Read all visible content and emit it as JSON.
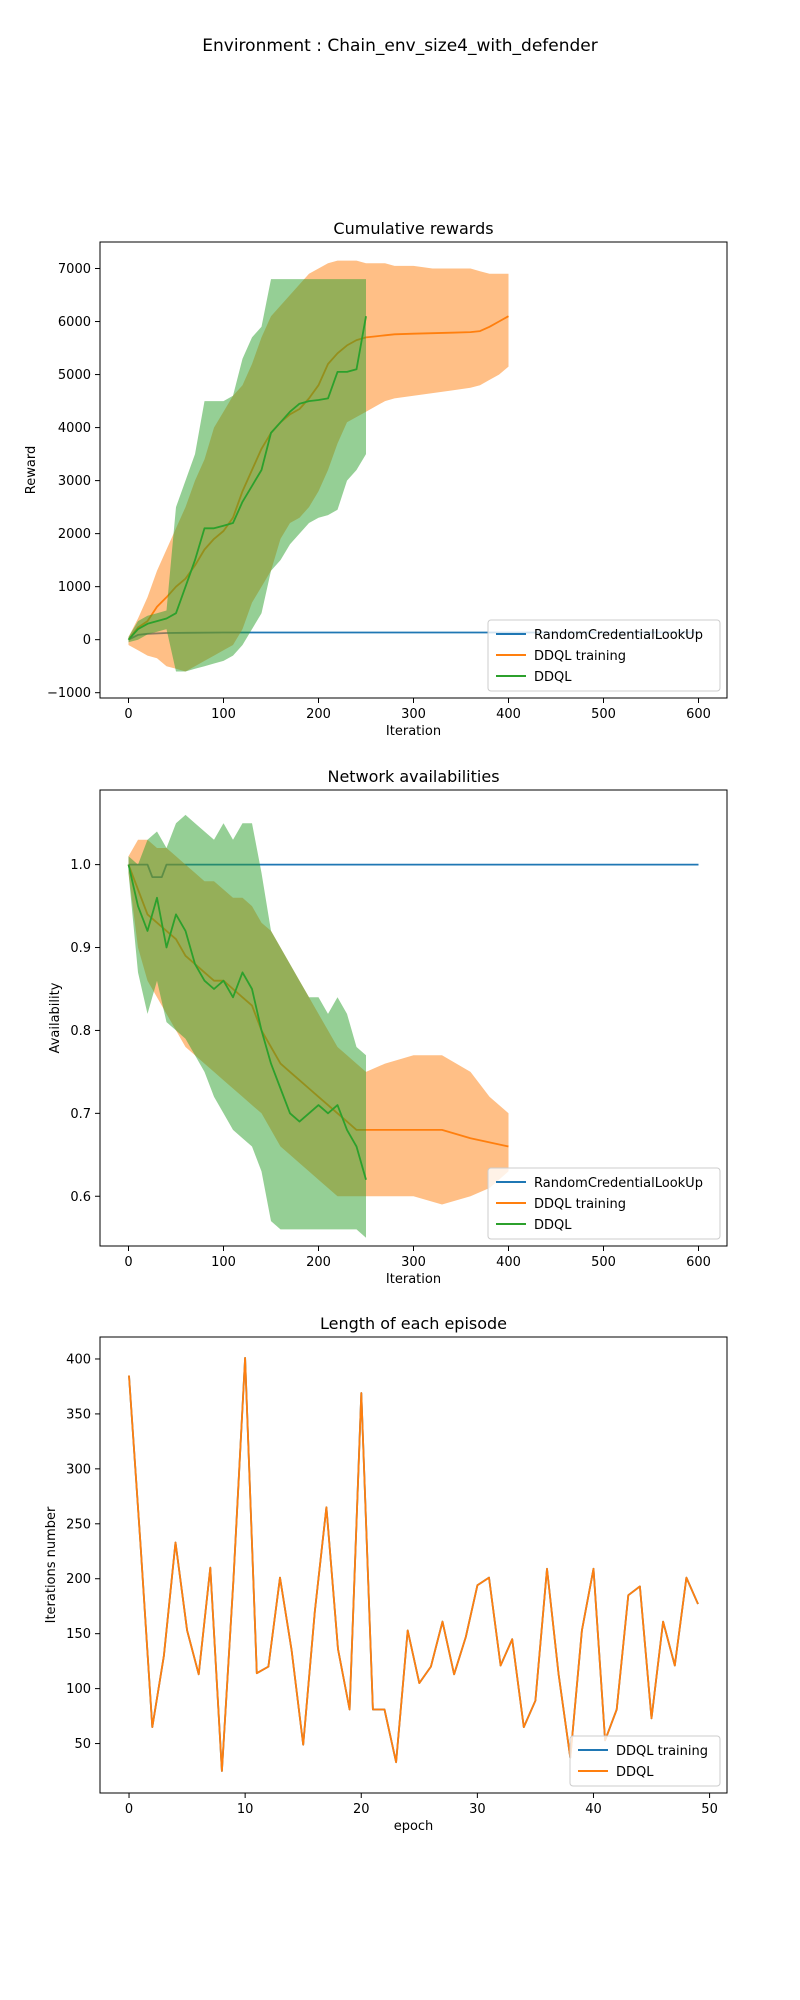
{
  "figure": {
    "suptitle": "Environment : Chain_env_size4_with_defender"
  },
  "chart_data": [
    {
      "type": "line",
      "title": "Cumulative rewards",
      "xlabel": "Iteration",
      "ylabel": "Reward",
      "xlim": [
        -30,
        630
      ],
      "ylim": [
        -1100,
        7500
      ],
      "xticks": [
        0,
        100,
        200,
        300,
        400,
        500,
        600
      ],
      "yticks": [
        -1000,
        0,
        1000,
        2000,
        3000,
        4000,
        5000,
        6000,
        7000
      ],
      "legend_position": "lower-right",
      "legend": [
        "RandomCredentialLookUp",
        "DDQL training",
        "DDQL"
      ],
      "series": [
        {
          "name": "RandomCredentialLookUp",
          "color": "#1f77b4",
          "x": [
            0,
            10,
            20,
            40,
            60,
            100,
            200,
            300,
            400,
            500,
            600
          ],
          "y": [
            0,
            90,
            110,
            125,
            130,
            135,
            135,
            135,
            135,
            135,
            135
          ]
        },
        {
          "name": "DDQL training",
          "color": "#ff7f0e",
          "x": [
            0,
            10,
            20,
            30,
            40,
            50,
            60,
            70,
            80,
            90,
            100,
            110,
            120,
            130,
            140,
            150,
            160,
            170,
            180,
            190,
            200,
            210,
            220,
            230,
            240,
            250,
            260,
            270,
            280,
            300,
            320,
            340,
            360,
            370,
            380,
            390,
            400
          ],
          "y": [
            0,
            230,
            350,
            620,
            800,
            1000,
            1150,
            1400,
            1700,
            1900,
            2050,
            2300,
            2800,
            3200,
            3600,
            3900,
            4100,
            4250,
            4350,
            4550,
            4800,
            5200,
            5400,
            5550,
            5650,
            5700,
            5720,
            5740,
            5760,
            5770,
            5780,
            5790,
            5800,
            5820,
            5900,
            6000,
            6100
          ],
          "band_low": [
            -100,
            -200,
            -300,
            -350,
            -500,
            -550,
            -600,
            -500,
            -400,
            -300,
            -200,
            -100,
            200,
            700,
            1000,
            1300,
            1900,
            2200,
            2300,
            2500,
            2800,
            3200,
            3700,
            4100,
            4200,
            4300,
            4400,
            4500,
            4550,
            4600,
            4650,
            4700,
            4750,
            4800,
            4900,
            5000,
            5150
          ],
          "band_high": [
            50,
            400,
            800,
            1300,
            1700,
            2100,
            2500,
            3000,
            3400,
            4000,
            4300,
            4600,
            4800,
            5200,
            5700,
            6100,
            6300,
            6500,
            6700,
            6900,
            7000,
            7100,
            7150,
            7150,
            7150,
            7100,
            7100,
            7100,
            7050,
            7050,
            7000,
            7000,
            7000,
            6950,
            6900,
            6900,
            6900
          ]
        },
        {
          "name": "DDQL",
          "color": "#2ca02c",
          "x": [
            0,
            10,
            20,
            30,
            40,
            50,
            60,
            70,
            80,
            90,
            100,
            110,
            120,
            130,
            140,
            150,
            160,
            170,
            180,
            190,
            200,
            210,
            220,
            230,
            240,
            250
          ],
          "y": [
            0,
            200,
            300,
            350,
            400,
            500,
            1000,
            1500,
            2100,
            2100,
            2150,
            2200,
            2600,
            2900,
            3200,
            3900,
            4100,
            4300,
            4450,
            4500,
            4520,
            4550,
            5050,
            5050,
            5100,
            6100
          ],
          "band_low": [
            -50,
            0,
            100,
            150,
            200,
            -600,
            -600,
            -550,
            -500,
            -450,
            -400,
            -300,
            -100,
            200,
            500,
            1300,
            1500,
            1800,
            2000,
            2200,
            2300,
            2350,
            2450,
            3000,
            3200,
            3500
          ],
          "band_high": [
            50,
            350,
            450,
            500,
            550,
            2500,
            3000,
            3500,
            4500,
            4500,
            4500,
            4600,
            5300,
            5700,
            5900,
            6800,
            6800,
            6800,
            6800,
            6800,
            6800,
            6800,
            6800,
            6800,
            6800,
            6800
          ]
        }
      ]
    },
    {
      "type": "line",
      "title": "Network availabilities",
      "xlabel": "Iteration",
      "ylabel": "Availability",
      "xlim": [
        -30,
        630
      ],
      "ylim": [
        0.54,
        1.09
      ],
      "xticks": [
        0,
        100,
        200,
        300,
        400,
        500,
        600
      ],
      "yticks": [
        0.6,
        0.7,
        0.8,
        0.9,
        1.0
      ],
      "yticklabels": [
        "0.6",
        "0.7",
        "0.8",
        "0.9",
        "1.0"
      ],
      "legend_position": "lower-right",
      "legend": [
        "RandomCredentialLookUp",
        "DDQL training",
        "DDQL"
      ],
      "series": [
        {
          "name": "RandomCredentialLookUp",
          "color": "#1f77b4",
          "x": [
            0,
            20,
            25,
            35,
            40,
            600
          ],
          "y": [
            1.0,
            1.0,
            0.985,
            0.985,
            1.0,
            1.0
          ]
        },
        {
          "name": "DDQL training",
          "color": "#ff7f0e",
          "x": [
            0,
            10,
            20,
            30,
            40,
            50,
            60,
            70,
            80,
            90,
            100,
            110,
            120,
            130,
            140,
            150,
            160,
            170,
            180,
            190,
            200,
            210,
            220,
            230,
            240,
            250,
            270,
            300,
            330,
            360,
            380,
            400
          ],
          "y": [
            1.0,
            0.97,
            0.94,
            0.93,
            0.92,
            0.91,
            0.89,
            0.88,
            0.87,
            0.86,
            0.86,
            0.85,
            0.84,
            0.83,
            0.8,
            0.78,
            0.76,
            0.75,
            0.74,
            0.73,
            0.72,
            0.71,
            0.7,
            0.69,
            0.68,
            0.68,
            0.68,
            0.68,
            0.68,
            0.67,
            0.665,
            0.66
          ],
          "band_low": [
            0.99,
            0.9,
            0.86,
            0.84,
            0.82,
            0.8,
            0.78,
            0.77,
            0.76,
            0.75,
            0.74,
            0.73,
            0.72,
            0.71,
            0.7,
            0.68,
            0.66,
            0.65,
            0.64,
            0.63,
            0.62,
            0.61,
            0.6,
            0.6,
            0.6,
            0.6,
            0.6,
            0.6,
            0.59,
            0.6,
            0.61,
            0.63
          ],
          "band_high": [
            1.01,
            1.03,
            1.03,
            1.02,
            1.02,
            1.01,
            1.0,
            0.99,
            0.98,
            0.98,
            0.97,
            0.96,
            0.96,
            0.95,
            0.93,
            0.92,
            0.9,
            0.88,
            0.86,
            0.84,
            0.82,
            0.8,
            0.78,
            0.77,
            0.76,
            0.75,
            0.76,
            0.77,
            0.77,
            0.75,
            0.72,
            0.7
          ]
        },
        {
          "name": "DDQL",
          "color": "#2ca02c",
          "x": [
            0,
            10,
            20,
            30,
            40,
            50,
            60,
            70,
            80,
            90,
            100,
            110,
            120,
            130,
            140,
            150,
            160,
            170,
            180,
            190,
            200,
            210,
            220,
            230,
            240,
            250
          ],
          "y": [
            1.0,
            0.95,
            0.92,
            0.96,
            0.9,
            0.94,
            0.92,
            0.88,
            0.86,
            0.85,
            0.86,
            0.84,
            0.87,
            0.85,
            0.8,
            0.76,
            0.73,
            0.7,
            0.69,
            0.7,
            0.71,
            0.7,
            0.71,
            0.68,
            0.66,
            0.62
          ],
          "band_low": [
            0.99,
            0.87,
            0.82,
            0.86,
            0.81,
            0.8,
            0.79,
            0.77,
            0.75,
            0.72,
            0.7,
            0.68,
            0.67,
            0.66,
            0.63,
            0.57,
            0.56,
            0.56,
            0.56,
            0.56,
            0.56,
            0.56,
            0.56,
            0.56,
            0.56,
            0.55
          ],
          "band_high": [
            1.01,
            1.0,
            1.03,
            1.04,
            1.02,
            1.05,
            1.06,
            1.05,
            1.04,
            1.03,
            1.05,
            1.03,
            1.05,
            1.05,
            0.99,
            0.92,
            0.9,
            0.88,
            0.86,
            0.84,
            0.84,
            0.82,
            0.84,
            0.82,
            0.78,
            0.77
          ]
        }
      ]
    },
    {
      "type": "line",
      "title": "Length of each episode",
      "xlabel": "epoch",
      "ylabel": "Iterations number",
      "xlim": [
        -2.5,
        51.5
      ],
      "ylim": [
        5,
        420
      ],
      "xticks": [
        0,
        10,
        20,
        30,
        40,
        50
      ],
      "yticks": [
        50,
        100,
        150,
        200,
        250,
        300,
        350,
        400
      ],
      "legend_position": "lower-right",
      "legend": [
        "DDQL training",
        "DDQL"
      ],
      "x": [
        0,
        1,
        2,
        3,
        4,
        5,
        6,
        7,
        8,
        9,
        10,
        11,
        12,
        13,
        14,
        15,
        16,
        17,
        18,
        19,
        20,
        21,
        22,
        23,
        24,
        25,
        26,
        27,
        28,
        29,
        30,
        31,
        32,
        33,
        34,
        35,
        36,
        37,
        38,
        39,
        40,
        41,
        42,
        43,
        44,
        45,
        46,
        47,
        48,
        49
      ],
      "series": [
        {
          "name": "DDQL training",
          "color": "#1f77b4",
          "y": [
            385,
            230,
            65,
            130,
            233,
            153,
            113,
            210,
            25,
            200,
            401,
            114,
            120,
            201,
            135,
            49,
            170,
            265,
            136,
            81,
            369,
            81,
            81,
            33,
            153,
            105,
            120,
            161,
            113,
            147,
            194,
            201,
            121,
            145,
            65,
            89,
            209,
            113,
            37,
            153,
            209,
            53,
            81,
            185,
            193,
            73,
            161,
            121,
            201,
            177
          ]
        },
        {
          "name": "DDQL",
          "color": "#ff7f0e",
          "y": [
            385,
            230,
            65,
            130,
            233,
            153,
            113,
            210,
            25,
            200,
            401,
            114,
            120,
            201,
            135,
            49,
            170,
            265,
            136,
            81,
            369,
            81,
            81,
            33,
            153,
            105,
            120,
            161,
            113,
            147,
            194,
            201,
            121,
            145,
            65,
            89,
            209,
            113,
            37,
            153,
            209,
            53,
            81,
            185,
            193,
            73,
            161,
            121,
            201,
            177
          ]
        }
      ]
    }
  ]
}
